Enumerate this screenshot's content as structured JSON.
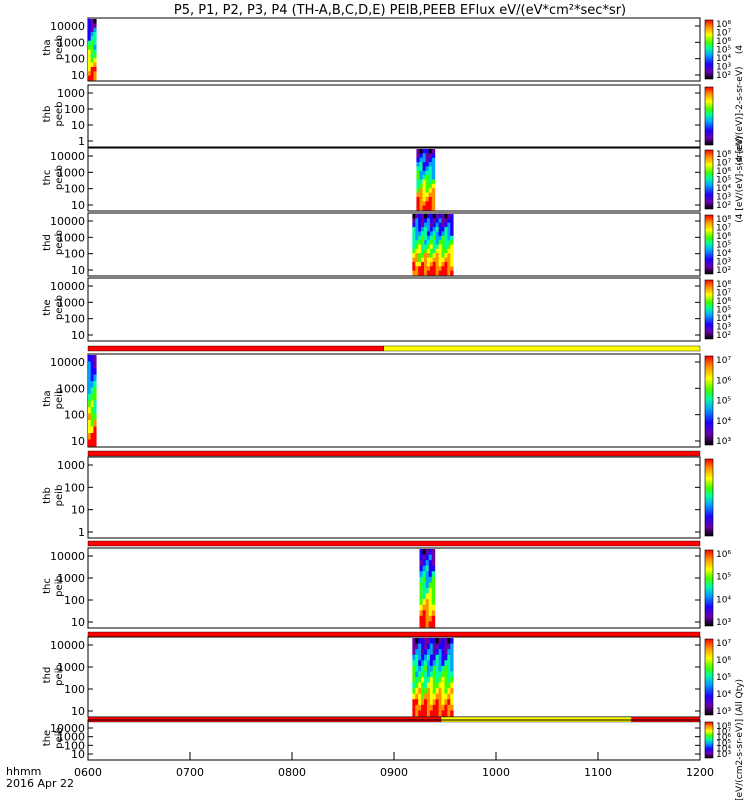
{
  "title": "P5, P1, P2, P3, P4 (TH-A,B,C,D,E) PEIB,PEEB EFlux eV/(eV*cm²*sec*sr)",
  "footer": {
    "time_label": "hhmm",
    "date_label": "2016 Apr 22"
  },
  "chart_data": {
    "type": "heatmap",
    "x_axis": {
      "ticks": [
        "0600",
        "0700",
        "0800",
        "0900",
        "1000",
        "1100",
        "1200"
      ],
      "range": [
        600,
        1200
      ]
    },
    "colorscale": [
      "#000000",
      "#6a00a8",
      "#1f00ff",
      "#00a0ff",
      "#00ffa0",
      "#40ff00",
      "#ffff00",
      "#ff9000",
      "#ff0000"
    ],
    "panels": [
      {
        "id": "tha-peeb",
        "label_top": "tha",
        "label_bottom": "peeb",
        "yticks": [
          "10000",
          "1000",
          "100",
          "10"
        ],
        "cbar_ticks": [
          "10⁸",
          "10⁷",
          "10⁶",
          "10⁵",
          "10⁴",
          "10³",
          "10²"
        ],
        "cbar_label": "(4",
        "bursts": [
          {
            "t0": 600,
            "t1": 608
          }
        ],
        "status_bar": null
      },
      {
        "id": "thb-peeb",
        "label_top": "thb",
        "label_bottom": "peeb",
        "yticks": [
          "1000",
          "100",
          "10",
          "1"
        ],
        "cbar_ticks": [],
        "cbar_label": "(4 [eV/(eV)]-2-s-sr-eV)",
        "bursts": [],
        "status_bar": null
      },
      {
        "id": "thc-peeb",
        "label_top": "thc",
        "label_bottom": "peeb",
        "yticks": [
          "10000",
          "1000",
          "100",
          "10"
        ],
        "cbar_ticks": [
          "10⁸",
          "10⁷",
          "10⁶",
          "10⁵",
          "10⁴",
          "10³",
          "10²"
        ],
        "cbar_label": "(4 [eV/(eV]-s-sr-eV)",
        "bursts": [
          {
            "t0": 922,
            "t1": 940
          }
        ],
        "status_bar": null
      },
      {
        "id": "thd-peeb",
        "label_top": "thd",
        "label_bottom": "peeb",
        "yticks": [
          "10000",
          "1000",
          "100",
          "10"
        ],
        "cbar_ticks": [
          "10⁸",
          "10⁷",
          "10⁶",
          "10⁵",
          "10⁴",
          "10³",
          "10²"
        ],
        "cbar_label": "",
        "bursts": [
          {
            "t0": 918,
            "t1": 958
          }
        ],
        "status_bar": null
      },
      {
        "id": "the-peeb",
        "label_top": "the",
        "label_bottom": "peeb",
        "yticks": [
          "10000",
          "1000",
          "100",
          "10"
        ],
        "cbar_ticks": [
          "10⁸",
          "10⁷",
          "10⁶",
          "10⁵",
          "10⁴",
          "10³",
          "10²"
        ],
        "cbar_label": "",
        "bursts": [],
        "status_bar": [
          {
            "t0": 600,
            "t1": 890,
            "color": "#ff0000"
          },
          {
            "t0": 890,
            "t1": 1200,
            "color": "#ffff00"
          }
        ]
      },
      {
        "id": "tha-peib",
        "label_top": "tha",
        "label_bottom": "peib",
        "yticks": [
          "10000",
          "1000",
          "100",
          "10"
        ],
        "cbar_ticks": [
          "10⁷",
          "10⁶",
          "10⁵",
          "10⁴",
          "10³"
        ],
        "cbar_label": "",
        "bursts": [
          {
            "t0": 600,
            "t1": 608
          }
        ],
        "status_bar": [
          {
            "t0": 600,
            "t1": 1200,
            "color": "#ff0000"
          }
        ]
      },
      {
        "id": "thb-peib",
        "label_top": "thb",
        "label_bottom": "peib",
        "yticks": [
          "1000",
          "100",
          "10",
          "1"
        ],
        "cbar_ticks": [],
        "cbar_label": "",
        "bursts": [],
        "status_bar": [
          {
            "t0": 600,
            "t1": 1200,
            "color": "#ff0000"
          }
        ]
      },
      {
        "id": "thc-peib",
        "label_top": "thc",
        "label_bottom": "peib",
        "yticks": [
          "10000",
          "1000",
          "100",
          "10"
        ],
        "cbar_ticks": [
          "10⁶",
          "10⁵",
          "10⁴",
          "10³"
        ],
        "cbar_label": "",
        "bursts": [
          {
            "t0": 925,
            "t1": 940
          }
        ],
        "status_bar": [
          {
            "t0": 600,
            "t1": 1200,
            "color": "#ff0000"
          }
        ]
      },
      {
        "id": "thd-peib",
        "label_top": "thd",
        "label_bottom": "peib",
        "yticks": [
          "10000",
          "1000",
          "100",
          "10"
        ],
        "cbar_ticks": [
          "10⁷",
          "10⁶",
          "10⁵",
          "10⁴",
          "10³"
        ],
        "cbar_label": "",
        "bursts": [
          {
            "t0": 918,
            "t1": 958
          }
        ],
        "status_bar": [
          {
            "t0": 600,
            "t1": 946,
            "color": "#ff0000"
          },
          {
            "t0": 946,
            "t1": 1133,
            "color": "#ffff00"
          },
          {
            "t0": 1133,
            "t1": 1200,
            "color": "#ff0000"
          }
        ]
      },
      {
        "id": "the-peib",
        "label_top": "the",
        "label_bottom": "peib",
        "yticks": [
          "10000",
          "1000",
          "100",
          "10"
        ],
        "cbar_ticks": [
          "10⁸",
          "10⁷",
          "10⁶",
          "10⁵",
          "10⁴",
          "10³"
        ],
        "cbar_label": "[eV/(cm2-s-sr-eV)] (All Qty)",
        "bursts": [],
        "status_bar": null
      }
    ]
  }
}
